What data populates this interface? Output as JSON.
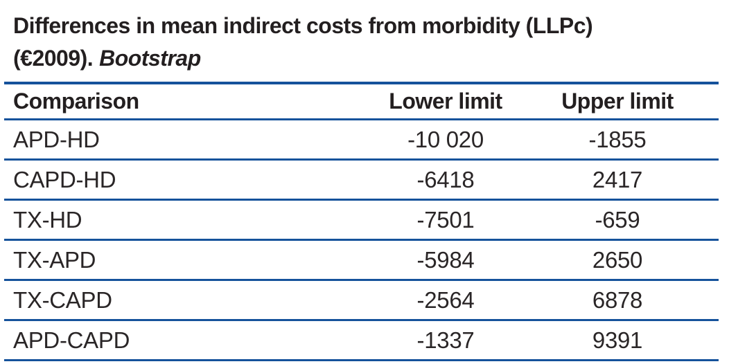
{
  "title": {
    "line1": "Differences in mean indirect costs from morbidity (LLPc)",
    "line2_prefix": "(€2009).",
    "line2_italic": "Bootstrap"
  },
  "table": {
    "columns": {
      "comparison": "Comparison",
      "lower": "Lower limit",
      "upper": "Upper limit"
    },
    "rows": [
      {
        "comparison": "APD-HD",
        "lower": "-10 020",
        "upper": "-1855"
      },
      {
        "comparison": "CAPD-HD",
        "lower": "-6418",
        "upper": "2417"
      },
      {
        "comparison": "TX-HD",
        "lower": "-7501",
        "upper": "-659"
      },
      {
        "comparison": "TX-APD",
        "lower": "-5984",
        "upper": "2650"
      },
      {
        "comparison": "TX-CAPD",
        "lower": "-2564",
        "upper": "6878"
      },
      {
        "comparison": "APD-CAPD",
        "lower": "-1337",
        "upper": "9391"
      }
    ]
  },
  "colors": {
    "rule_blue": "#15529b",
    "text_black": "#231f20"
  }
}
